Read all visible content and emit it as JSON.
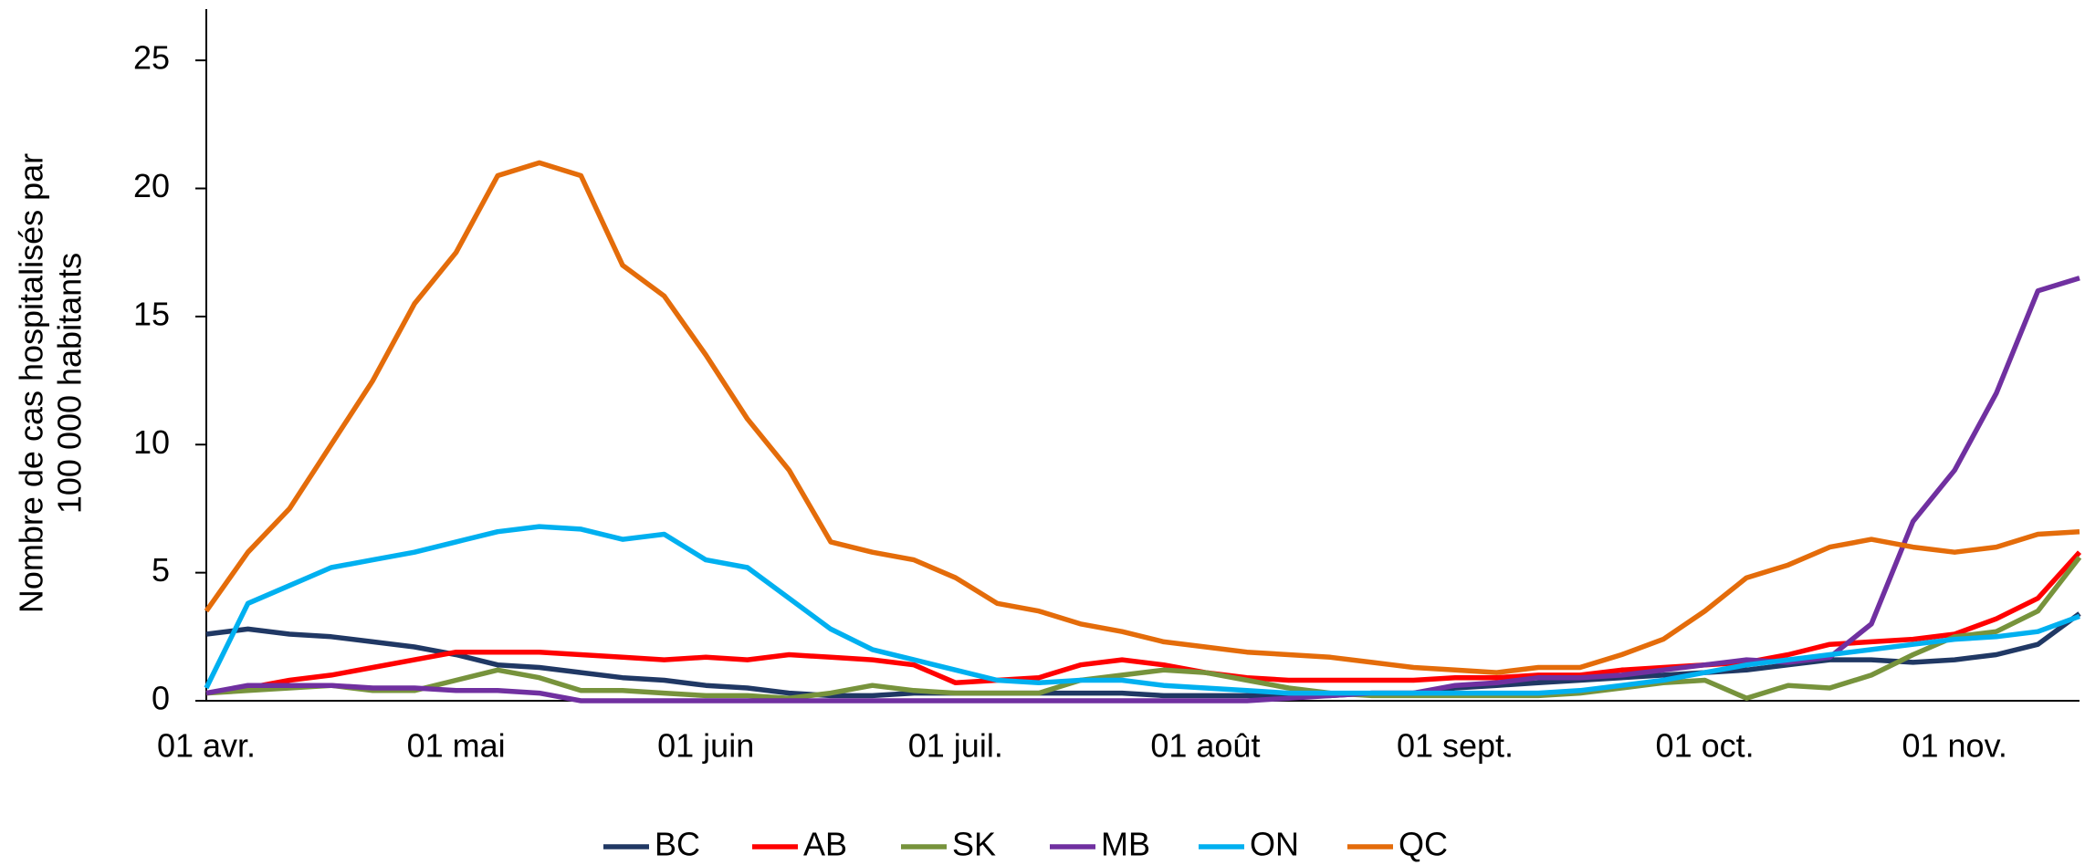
{
  "chart_data": {
    "type": "line",
    "ylabel": [
      "Nombre de cas hospitalisés par",
      "100 000 habitants"
    ],
    "categories": [
      "01 avr.",
      null,
      null,
      null,
      null,
      null,
      "01 mai",
      null,
      null,
      null,
      null,
      null,
      "01 juin",
      null,
      null,
      null,
      null,
      null,
      "01 juil.",
      null,
      null,
      null,
      null,
      null,
      "01 août",
      null,
      null,
      null,
      null,
      null,
      "01 sept.",
      null,
      null,
      null,
      null,
      null,
      "01 oct.",
      null,
      null,
      null,
      null,
      null,
      "01 nov.",
      null,
      null,
      null
    ],
    "ylim": [
      0,
      27
    ],
    "yticks": [
      0,
      5,
      10,
      15,
      20,
      25
    ],
    "legend": "bottom",
    "series": [
      {
        "name": "BC",
        "color": "#203864",
        "values": [
          2.6,
          2.8,
          2.6,
          2.5,
          2.3,
          2.1,
          1.8,
          1.4,
          1.3,
          1.1,
          0.9,
          0.8,
          0.6,
          0.5,
          0.3,
          0.2,
          0.2,
          0.3,
          0.3,
          0.3,
          0.3,
          0.3,
          0.3,
          0.2,
          0.2,
          0.2,
          0.2,
          0.2,
          0.3,
          0.3,
          0.5,
          0.6,
          0.7,
          0.8,
          0.9,
          1,
          1.1,
          1.2,
          1.4,
          1.6,
          1.6,
          1.5,
          1.6,
          1.8,
          2.2,
          3.4
        ]
      },
      {
        "name": "AB",
        "color": "#ff0000",
        "values": [
          0.3,
          0.5,
          0.8,
          1.0,
          1.3,
          1.6,
          1.9,
          1.9,
          1.9,
          1.8,
          1.7,
          1.6,
          1.7,
          1.6,
          1.8,
          1.7,
          1.6,
          1.4,
          0.7,
          0.8,
          0.9,
          1.4,
          1.6,
          1.4,
          1.1,
          0.9,
          0.8,
          0.8,
          0.8,
          0.8,
          0.9,
          0.9,
          1,
          1.0,
          1.2,
          1.3,
          1.4,
          1.5,
          1.8,
          2.2,
          2.3,
          2.4,
          2.6,
          3.2,
          4,
          5.8
        ]
      },
      {
        "name": "SK",
        "color": "#77933c",
        "values": [
          0.3,
          0.4,
          0.5,
          0.6,
          0.4,
          0.4,
          0.8,
          1.2,
          0.9,
          0.4,
          0.4,
          0.3,
          0.2,
          0.2,
          0.1,
          0.3,
          0.6,
          0.4,
          0.3,
          0.3,
          0.3,
          0.8,
          1.0,
          1.2,
          1.1,
          0.8,
          0.5,
          0.3,
          0.2,
          0.2,
          0.2,
          0.2,
          0.2,
          0.3,
          0.5,
          0.7,
          0.8,
          0.1,
          0.6,
          0.5,
          1.0,
          1.8,
          2.5,
          2.7,
          3.5,
          5.6
        ]
      },
      {
        "name": "MB",
        "color": "#7030a0",
        "values": [
          0.3,
          0.6,
          0.6,
          0.6,
          0.5,
          0.5,
          0.4,
          0.4,
          0.3,
          0,
          0,
          0,
          0,
          0,
          0,
          0,
          0,
          0,
          0,
          0,
          0,
          0,
          0,
          0,
          0,
          0,
          0.1,
          0.2,
          0.3,
          0.3,
          0.6,
          0.7,
          0.9,
          0.9,
          1,
          1.2,
          1.4,
          1.6,
          1.5,
          1.7,
          3,
          7,
          9,
          12,
          16,
          16.5
        ]
      },
      {
        "name": "ON",
        "color": "#00b0f0",
        "values": [
          0.5,
          3.8,
          4.5,
          5.2,
          5.5,
          5.8,
          6.2,
          6.6,
          6.8,
          6.7,
          6.3,
          6.5,
          5.5,
          5.2,
          4,
          2.8,
          2,
          1.6,
          1.2,
          0.8,
          0.7,
          0.8,
          0.8,
          0.6,
          0.5,
          0.4,
          0.3,
          0.3,
          0.3,
          0.3,
          0.3,
          0.3,
          0.3,
          0.4,
          0.6,
          0.8,
          1.1,
          1.4,
          1.6,
          1.8,
          2.0,
          2.2,
          2.4,
          2.5,
          2.7,
          3.3
        ]
      },
      {
        "name": "QC",
        "color": "#e46c0a",
        "values": [
          3.5,
          5.8,
          7.5,
          10,
          12.5,
          15.5,
          17.5,
          20.5,
          21,
          20.5,
          17,
          15.8,
          13.5,
          11,
          9,
          6.2,
          5.8,
          5.5,
          4.8,
          3.8,
          3.5,
          3,
          2.7,
          2.3,
          2.1,
          1.9,
          1.8,
          1.7,
          1.5,
          1.3,
          1.2,
          1.1,
          1.3,
          1.3,
          1.8,
          2.4,
          3.5,
          4.8,
          5.3,
          6,
          6.3,
          6,
          5.8,
          6,
          6.5,
          6.6
        ]
      }
    ]
  }
}
